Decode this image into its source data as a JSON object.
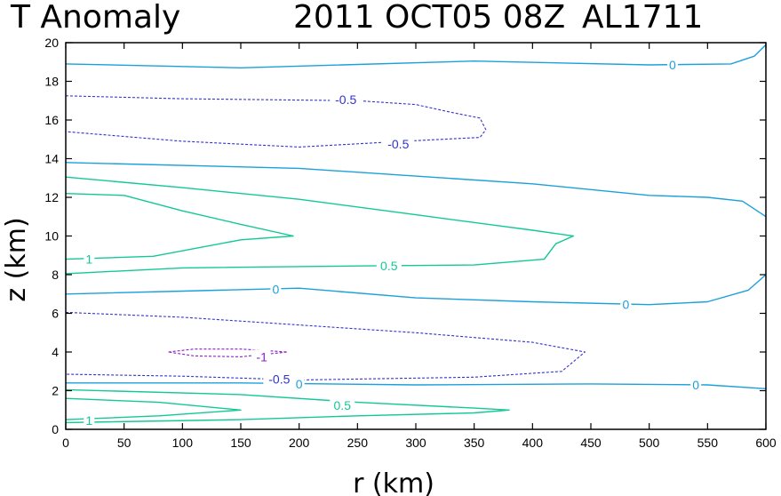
{
  "chart_data": {
    "type": "contour",
    "title": "T Anomaly",
    "datetime": "2011 OCT05 08Z",
    "storm_id": "AL1711",
    "xlabel": "r (km)",
    "ylabel": "z (km)",
    "xlim": [
      0,
      600
    ],
    "ylim": [
      0,
      20
    ],
    "x_ticks": [
      0,
      50,
      100,
      150,
      200,
      250,
      300,
      350,
      400,
      450,
      500,
      550,
      600
    ],
    "y_ticks": [
      0,
      2,
      4,
      6,
      8,
      10,
      12,
      14,
      16,
      18,
      20
    ],
    "x_tick_labels": [
      "0",
      "50",
      "100",
      "150",
      "200",
      "250",
      "300",
      "350",
      "400",
      "450",
      "500",
      "550",
      "600"
    ],
    "y_tick_labels": [
      "0",
      "2",
      "4",
      "6",
      "8",
      "10",
      "12",
      "14",
      "16",
      "18",
      "20"
    ],
    "colors": {
      "zero": "#1ca0dc",
      "positive": "#14c896",
      "negative_half": "#3232d2",
      "negative_one": "#8c1ec8"
    },
    "contours": [
      {
        "id": "zero-upper",
        "level": 0,
        "style": "zero",
        "dash": false,
        "points": [
          [
            0,
            18.9
          ],
          [
            150,
            18.7
          ],
          [
            350,
            19.05
          ],
          [
            500,
            18.85
          ],
          [
            570,
            18.9
          ],
          [
            590,
            19.3
          ],
          [
            600,
            19.9
          ]
        ]
      },
      {
        "id": "neg-half-upper",
        "level": -0.5,
        "style": "negative_half",
        "dash": true,
        "points": [
          [
            0,
            17.25
          ],
          [
            100,
            17.1
          ],
          [
            250,
            17.0
          ],
          [
            300,
            16.8
          ],
          [
            330,
            16.4
          ],
          [
            355,
            16.1
          ],
          [
            360,
            15.5
          ],
          [
            355,
            15.1
          ],
          [
            290,
            14.9
          ],
          [
            200,
            14.6
          ],
          [
            100,
            14.9
          ],
          [
            0,
            15.4
          ]
        ]
      },
      {
        "id": "zero-upper-mid",
        "level": 0,
        "style": "zero",
        "dash": false,
        "points": [
          [
            0,
            13.8
          ],
          [
            200,
            13.5
          ],
          [
            400,
            12.7
          ],
          [
            500,
            12.1
          ],
          [
            550,
            12.0
          ],
          [
            580,
            11.8
          ],
          [
            600,
            11.0
          ]
        ]
      },
      {
        "id": "pos-half-outer",
        "level": 0.5,
        "style": "positive",
        "dash": false,
        "points": [
          [
            0,
            13.05
          ],
          [
            100,
            12.5
          ],
          [
            200,
            11.9
          ],
          [
            300,
            11.1
          ],
          [
            400,
            10.3
          ],
          [
            435,
            10.0
          ],
          [
            420,
            9.6
          ],
          [
            410,
            8.8
          ],
          [
            350,
            8.5
          ],
          [
            250,
            8.45
          ],
          [
            100,
            8.35
          ],
          [
            0,
            8.05
          ]
        ]
      },
      {
        "id": "pos-one-upper",
        "level": 1,
        "style": "positive",
        "dash": false,
        "points": [
          [
            0,
            12.2
          ],
          [
            50,
            12.1
          ],
          [
            100,
            11.3
          ],
          [
            150,
            10.6
          ],
          [
            195,
            10.0
          ],
          [
            150,
            9.8
          ],
          [
            75,
            8.95
          ],
          [
            0,
            8.8
          ]
        ]
      },
      {
        "id": "zero-mid",
        "level": 0,
        "style": "zero",
        "dash": false,
        "points": [
          [
            0,
            7.0
          ],
          [
            100,
            7.15
          ],
          [
            200,
            7.3
          ],
          [
            300,
            6.8
          ],
          [
            400,
            6.6
          ],
          [
            500,
            6.45
          ],
          [
            550,
            6.6
          ],
          [
            585,
            7.2
          ],
          [
            600,
            8.0
          ]
        ]
      },
      {
        "id": "neg-half-lower",
        "level": -0.5,
        "style": "negative_half",
        "dash": true,
        "points": [
          [
            0,
            6.05
          ],
          [
            100,
            5.8
          ],
          [
            200,
            5.4
          ],
          [
            300,
            5.0
          ],
          [
            400,
            4.5
          ],
          [
            445,
            4.0
          ],
          [
            425,
            3.0
          ],
          [
            350,
            2.7
          ],
          [
            200,
            2.55
          ],
          [
            100,
            2.75
          ],
          [
            0,
            2.85
          ]
        ]
      },
      {
        "id": "neg-one-cell",
        "level": -1,
        "style": "negative_one",
        "dash": true,
        "points": [
          [
            88,
            4.0
          ],
          [
            110,
            4.15
          ],
          [
            150,
            4.15
          ],
          [
            190,
            4.0
          ],
          [
            150,
            3.75
          ],
          [
            110,
            3.8
          ],
          [
            88,
            4.0
          ]
        ]
      },
      {
        "id": "zero-lower",
        "level": 0,
        "style": "zero",
        "dash": false,
        "points": [
          [
            0,
            2.4
          ],
          [
            150,
            2.4
          ],
          [
            300,
            2.3
          ],
          [
            450,
            2.35
          ],
          [
            550,
            2.3
          ],
          [
            600,
            2.1
          ]
        ]
      },
      {
        "id": "pos-half-lower",
        "level": 0.5,
        "style": "positive",
        "dash": false,
        "points": [
          [
            0,
            2.05
          ],
          [
            150,
            1.8
          ],
          [
            250,
            1.4
          ],
          [
            350,
            1.1
          ],
          [
            380,
            1.0
          ],
          [
            350,
            0.85
          ],
          [
            250,
            0.7
          ],
          [
            150,
            0.5
          ],
          [
            0,
            0.35
          ]
        ]
      },
      {
        "id": "pos-one-lower",
        "level": 1,
        "style": "positive",
        "dash": false,
        "points": [
          [
            0,
            1.6
          ],
          [
            80,
            1.4
          ],
          [
            150,
            1.0
          ],
          [
            80,
            0.7
          ],
          [
            0,
            0.5
          ]
        ]
      }
    ],
    "contour_labels": [
      {
        "text": "0",
        "x": 520,
        "y": 18.85,
        "style": "zero"
      },
      {
        "text": "-0.5",
        "x": 240,
        "y": 17.05,
        "style": "negative_half"
      },
      {
        "text": "-0.5",
        "x": 285,
        "y": 14.75,
        "style": "negative_half"
      },
      {
        "text": "1",
        "x": 20,
        "y": 8.8,
        "style": "positive"
      },
      {
        "text": "0.5",
        "x": 277,
        "y": 8.45,
        "style": "positive"
      },
      {
        "text": "0",
        "x": 180,
        "y": 7.25,
        "style": "zero"
      },
      {
        "text": "0",
        "x": 480,
        "y": 6.45,
        "style": "zero"
      },
      {
        "text": "-1",
        "x": 168,
        "y": 3.75,
        "style": "negative_one"
      },
      {
        "text": "-0.5",
        "x": 183,
        "y": 2.6,
        "style": "negative_half"
      },
      {
        "text": "0",
        "x": 200,
        "y": 2.35,
        "style": "zero"
      },
      {
        "text": "0",
        "x": 540,
        "y": 2.3,
        "style": "zero"
      },
      {
        "text": "0.5",
        "x": 237,
        "y": 1.25,
        "style": "positive"
      },
      {
        "text": "1",
        "x": 20,
        "y": 0.45,
        "style": "positive"
      }
    ]
  }
}
